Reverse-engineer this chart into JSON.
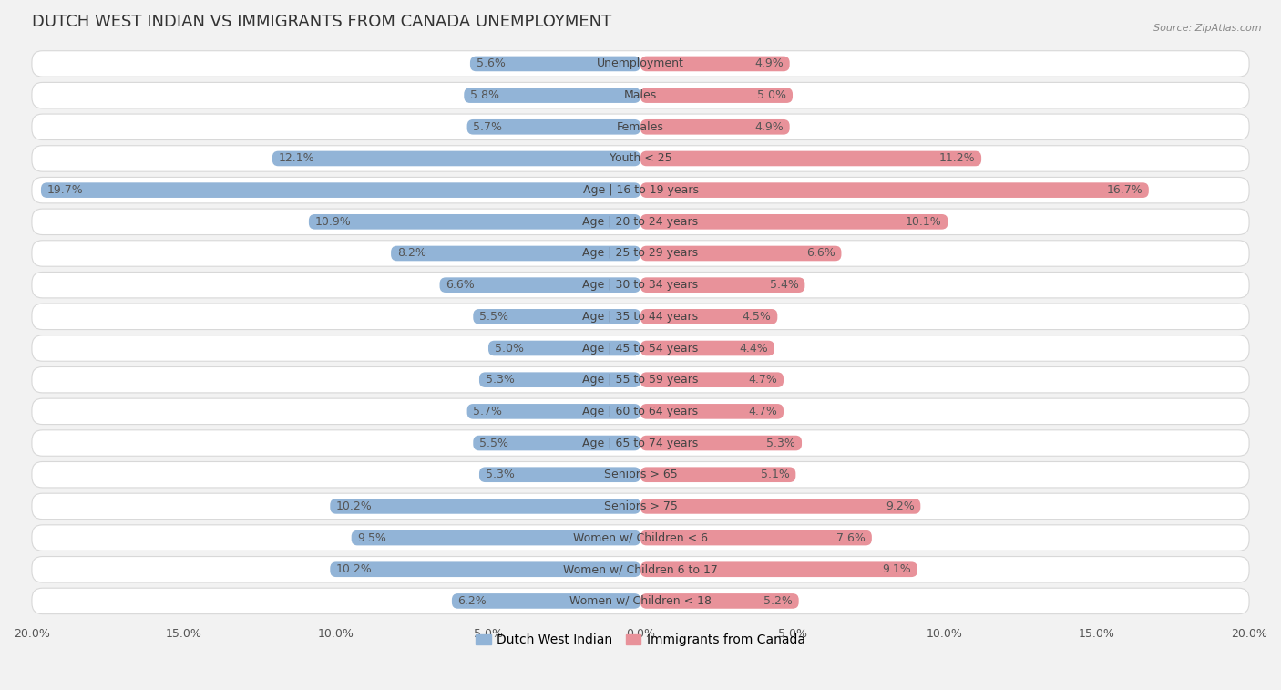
{
  "title": "DUTCH WEST INDIAN VS IMMIGRANTS FROM CANADA UNEMPLOYMENT",
  "source": "Source: ZipAtlas.com",
  "categories": [
    "Unemployment",
    "Males",
    "Females",
    "Youth < 25",
    "Age | 16 to 19 years",
    "Age | 20 to 24 years",
    "Age | 25 to 29 years",
    "Age | 30 to 34 years",
    "Age | 35 to 44 years",
    "Age | 45 to 54 years",
    "Age | 55 to 59 years",
    "Age | 60 to 64 years",
    "Age | 65 to 74 years",
    "Seniors > 65",
    "Seniors > 75",
    "Women w/ Children < 6",
    "Women w/ Children 6 to 17",
    "Women w/ Children < 18"
  ],
  "left_values": [
    5.6,
    5.8,
    5.7,
    12.1,
    19.7,
    10.9,
    8.2,
    6.6,
    5.5,
    5.0,
    5.3,
    5.7,
    5.5,
    5.3,
    10.2,
    9.5,
    10.2,
    6.2
  ],
  "right_values": [
    4.9,
    5.0,
    4.9,
    11.2,
    16.7,
    10.1,
    6.6,
    5.4,
    4.5,
    4.4,
    4.7,
    4.7,
    5.3,
    5.1,
    9.2,
    7.6,
    9.1,
    5.2
  ],
  "left_color": "#92b4d7",
  "right_color": "#e8929a",
  "left_label": "Dutch West Indian",
  "right_label": "Immigrants from Canada",
  "background_color": "#f2f2f2",
  "row_bg_color": "#ffffff",
  "row_border_color": "#d8d8d8",
  "max_value": 20.0,
  "title_fontsize": 13,
  "label_fontsize": 9,
  "value_fontsize": 9
}
